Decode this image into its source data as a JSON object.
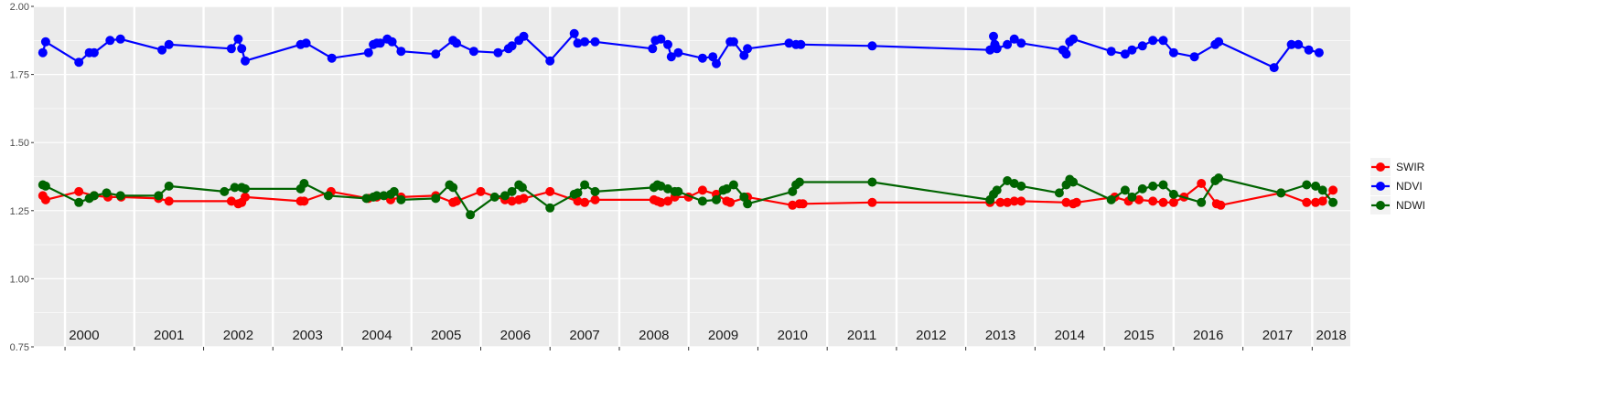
{
  "chart_data": {
    "type": "line",
    "title": "",
    "xlabel": "",
    "ylabel": "",
    "xlim": [
      1999.55,
      2018.55
    ],
    "ylim": [
      0.75,
      2.0
    ],
    "grid": true,
    "legend_position": "right",
    "y_ticks": [
      0.75,
      1.0,
      1.25,
      1.5,
      1.75,
      2.0
    ],
    "y_tick_labels": [
      "0.75",
      "1.00",
      "1.25",
      "1.50",
      "1.75",
      "2.00"
    ],
    "x_year_boundaries": [
      2000,
      2001,
      2002,
      2003,
      2004,
      2005,
      2006,
      2007,
      2008,
      2009,
      2010,
      2011,
      2012,
      2013,
      2014,
      2015,
      2016,
      2017,
      2018
    ],
    "year_labels": [
      "2000",
      "2001",
      "2002",
      "2003",
      "2004",
      "2005",
      "2006",
      "2007",
      "2008",
      "2009",
      "2010",
      "2011",
      "2012",
      "2013",
      "2014",
      "2015",
      "2016",
      "2017",
      "2018"
    ],
    "colors": {
      "panel": "#ebebeb",
      "grid": "#ffffff",
      "SWIR": "#ff0000",
      "NDVI": "#0000ff",
      "NDWI": "#006400"
    },
    "series": [
      {
        "name": "SWIR",
        "color": "#ff0000",
        "points": [
          [
            1999.68,
            1.305
          ],
          [
            1999.72,
            1.29
          ],
          [
            2000.2,
            1.32
          ],
          [
            2000.42,
            1.305
          ],
          [
            2000.62,
            1.3
          ],
          [
            2000.81,
            1.3
          ],
          [
            2001.35,
            1.295
          ],
          [
            2001.5,
            1.285
          ],
          [
            2002.4,
            1.285
          ],
          [
            2002.5,
            1.275
          ],
          [
            2002.55,
            1.28
          ],
          [
            2002.6,
            1.3
          ],
          [
            2003.4,
            1.285
          ],
          [
            2003.45,
            1.285
          ],
          [
            2003.84,
            1.32
          ],
          [
            2004.38,
            1.295
          ],
          [
            2004.5,
            1.3
          ],
          [
            2004.7,
            1.29
          ],
          [
            2004.85,
            1.3
          ],
          [
            2005.35,
            1.305
          ],
          [
            2005.6,
            1.28
          ],
          [
            2005.65,
            1.285
          ],
          [
            2006.0,
            1.32
          ],
          [
            2006.35,
            1.29
          ],
          [
            2006.45,
            1.285
          ],
          [
            2006.55,
            1.29
          ],
          [
            2006.62,
            1.295
          ],
          [
            2007.0,
            1.32
          ],
          [
            2007.4,
            1.285
          ],
          [
            2007.5,
            1.28
          ],
          [
            2007.65,
            1.29
          ],
          [
            2008.5,
            1.29
          ],
          [
            2008.55,
            1.285
          ],
          [
            2008.6,
            1.28
          ],
          [
            2008.7,
            1.285
          ],
          [
            2008.8,
            1.3
          ],
          [
            2009.0,
            1.3
          ],
          [
            2009.2,
            1.325
          ],
          [
            2009.4,
            1.31
          ],
          [
            2009.55,
            1.285
          ],
          [
            2009.6,
            1.28
          ],
          [
            2009.85,
            1.3
          ],
          [
            2010.5,
            1.27
          ],
          [
            2010.6,
            1.275
          ],
          [
            2010.65,
            1.275
          ],
          [
            2011.65,
            1.28
          ],
          [
            2013.35,
            1.28
          ],
          [
            2013.5,
            1.28
          ],
          [
            2013.6,
            1.28
          ],
          [
            2013.7,
            1.285
          ],
          [
            2013.8,
            1.285
          ],
          [
            2014.45,
            1.28
          ],
          [
            2014.55,
            1.275
          ],
          [
            2014.6,
            1.28
          ],
          [
            2015.15,
            1.3
          ],
          [
            2015.35,
            1.285
          ],
          [
            2015.5,
            1.29
          ],
          [
            2015.7,
            1.285
          ],
          [
            2015.85,
            1.28
          ],
          [
            2016.0,
            1.28
          ],
          [
            2016.15,
            1.3
          ],
          [
            2016.4,
            1.35
          ],
          [
            2016.62,
            1.275
          ],
          [
            2016.68,
            1.27
          ],
          [
            2017.55,
            1.315
          ],
          [
            2017.92,
            1.28
          ],
          [
            2018.05,
            1.28
          ],
          [
            2018.15,
            1.285
          ],
          [
            2018.3,
            1.325
          ]
        ]
      },
      {
        "name": "NDVI",
        "color": "#0000ff",
        "points": [
          [
            1999.68,
            1.83
          ],
          [
            1999.72,
            1.87
          ],
          [
            2000.2,
            1.795
          ],
          [
            2000.35,
            1.83
          ],
          [
            2000.42,
            1.83
          ],
          [
            2000.65,
            1.875
          ],
          [
            2000.8,
            1.88
          ],
          [
            2001.4,
            1.84
          ],
          [
            2001.5,
            1.86
          ],
          [
            2002.4,
            1.845
          ],
          [
            2002.5,
            1.88
          ],
          [
            2002.55,
            1.845
          ],
          [
            2002.6,
            1.8
          ],
          [
            2003.4,
            1.86
          ],
          [
            2003.48,
            1.865
          ],
          [
            2003.85,
            1.81
          ],
          [
            2004.38,
            1.83
          ],
          [
            2004.45,
            1.86
          ],
          [
            2004.5,
            1.865
          ],
          [
            2004.55,
            1.865
          ],
          [
            2004.65,
            1.88
          ],
          [
            2004.72,
            1.87
          ],
          [
            2004.85,
            1.835
          ],
          [
            2005.35,
            1.825
          ],
          [
            2005.6,
            1.875
          ],
          [
            2005.65,
            1.865
          ],
          [
            2005.9,
            1.835
          ],
          [
            2006.25,
            1.83
          ],
          [
            2006.4,
            1.845
          ],
          [
            2006.45,
            1.855
          ],
          [
            2006.55,
            1.875
          ],
          [
            2006.62,
            1.89
          ],
          [
            2007.0,
            1.8
          ],
          [
            2007.35,
            1.9
          ],
          [
            2007.4,
            1.865
          ],
          [
            2007.5,
            1.87
          ],
          [
            2007.65,
            1.87
          ],
          [
            2008.48,
            1.845
          ],
          [
            2008.52,
            1.875
          ],
          [
            2008.6,
            1.88
          ],
          [
            2008.7,
            1.86
          ],
          [
            2008.75,
            1.815
          ],
          [
            2008.85,
            1.83
          ],
          [
            2009.2,
            1.81
          ],
          [
            2009.35,
            1.815
          ],
          [
            2009.4,
            1.79
          ],
          [
            2009.6,
            1.87
          ],
          [
            2009.65,
            1.87
          ],
          [
            2009.8,
            1.82
          ],
          [
            2009.85,
            1.845
          ],
          [
            2010.45,
            1.865
          ],
          [
            2010.55,
            1.86
          ],
          [
            2010.62,
            1.86
          ],
          [
            2011.65,
            1.855
          ],
          [
            2013.35,
            1.84
          ],
          [
            2013.4,
            1.89
          ],
          [
            2013.42,
            1.86
          ],
          [
            2013.45,
            1.845
          ],
          [
            2013.6,
            1.86
          ],
          [
            2013.7,
            1.88
          ],
          [
            2013.8,
            1.865
          ],
          [
            2014.4,
            1.84
          ],
          [
            2014.45,
            1.825
          ],
          [
            2014.5,
            1.87
          ],
          [
            2014.55,
            1.88
          ],
          [
            2015.1,
            1.835
          ],
          [
            2015.3,
            1.825
          ],
          [
            2015.4,
            1.84
          ],
          [
            2015.55,
            1.855
          ],
          [
            2015.7,
            1.875
          ],
          [
            2015.85,
            1.875
          ],
          [
            2016.0,
            1.83
          ],
          [
            2016.3,
            1.815
          ],
          [
            2016.6,
            1.86
          ],
          [
            2016.65,
            1.87
          ],
          [
            2017.45,
            1.775
          ],
          [
            2017.7,
            1.86
          ],
          [
            2017.8,
            1.86
          ],
          [
            2017.95,
            1.84
          ],
          [
            2018.1,
            1.83
          ]
        ]
      },
      {
        "name": "NDWI",
        "color": "#006400",
        "points": [
          [
            1999.68,
            1.345
          ],
          [
            1999.72,
            1.34
          ],
          [
            2000.2,
            1.28
          ],
          [
            2000.35,
            1.295
          ],
          [
            2000.42,
            1.305
          ],
          [
            2000.6,
            1.315
          ],
          [
            2000.8,
            1.305
          ],
          [
            2001.35,
            1.305
          ],
          [
            2001.5,
            1.34
          ],
          [
            2002.3,
            1.32
          ],
          [
            2002.45,
            1.335
          ],
          [
            2002.55,
            1.335
          ],
          [
            2002.6,
            1.33
          ],
          [
            2003.4,
            1.33
          ],
          [
            2003.45,
            1.35
          ],
          [
            2003.8,
            1.305
          ],
          [
            2004.35,
            1.295
          ],
          [
            2004.45,
            1.3
          ],
          [
            2004.5,
            1.305
          ],
          [
            2004.6,
            1.305
          ],
          [
            2004.7,
            1.31
          ],
          [
            2004.75,
            1.32
          ],
          [
            2004.85,
            1.29
          ],
          [
            2005.35,
            1.295
          ],
          [
            2005.55,
            1.345
          ],
          [
            2005.6,
            1.335
          ],
          [
            2005.85,
            1.235
          ],
          [
            2006.2,
            1.3
          ],
          [
            2006.35,
            1.305
          ],
          [
            2006.45,
            1.32
          ],
          [
            2006.55,
            1.345
          ],
          [
            2006.6,
            1.335
          ],
          [
            2007.0,
            1.26
          ],
          [
            2007.35,
            1.31
          ],
          [
            2007.4,
            1.315
          ],
          [
            2007.5,
            1.345
          ],
          [
            2007.65,
            1.32
          ],
          [
            2008.5,
            1.335
          ],
          [
            2008.55,
            1.345
          ],
          [
            2008.6,
            1.34
          ],
          [
            2008.7,
            1.33
          ],
          [
            2008.8,
            1.32
          ],
          [
            2008.85,
            1.32
          ],
          [
            2009.2,
            1.285
          ],
          [
            2009.4,
            1.29
          ],
          [
            2009.5,
            1.325
          ],
          [
            2009.55,
            1.33
          ],
          [
            2009.65,
            1.345
          ],
          [
            2009.8,
            1.3
          ],
          [
            2009.85,
            1.275
          ],
          [
            2010.5,
            1.32
          ],
          [
            2010.55,
            1.345
          ],
          [
            2010.6,
            1.355
          ],
          [
            2011.65,
            1.355
          ],
          [
            2013.35,
            1.29
          ],
          [
            2013.4,
            1.31
          ],
          [
            2013.45,
            1.325
          ],
          [
            2013.6,
            1.36
          ],
          [
            2013.7,
            1.35
          ],
          [
            2013.8,
            1.34
          ],
          [
            2014.35,
            1.315
          ],
          [
            2014.45,
            1.345
          ],
          [
            2014.5,
            1.365
          ],
          [
            2014.55,
            1.355
          ],
          [
            2015.1,
            1.29
          ],
          [
            2015.3,
            1.325
          ],
          [
            2015.4,
            1.3
          ],
          [
            2015.55,
            1.33
          ],
          [
            2015.7,
            1.34
          ],
          [
            2015.85,
            1.345
          ],
          [
            2016.0,
            1.31
          ],
          [
            2016.4,
            1.28
          ],
          [
            2016.6,
            1.36
          ],
          [
            2016.65,
            1.37
          ],
          [
            2017.55,
            1.315
          ],
          [
            2017.92,
            1.345
          ],
          [
            2018.05,
            1.34
          ],
          [
            2018.15,
            1.325
          ],
          [
            2018.3,
            1.28
          ]
        ]
      }
    ]
  }
}
